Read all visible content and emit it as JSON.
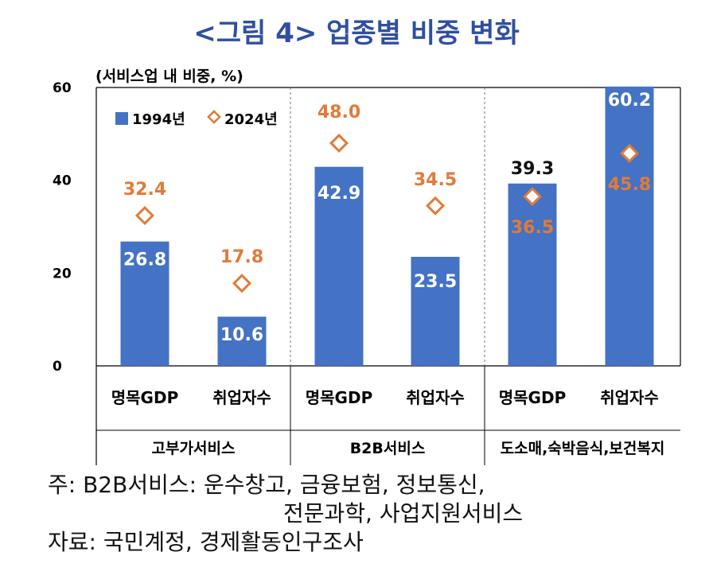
{
  "title": "<그림 4> 업종별 비중 변화",
  "chart_data": {
    "type": "bar",
    "ylabel": "(서비스업 내 비중, %)",
    "ylim": [
      0,
      60
    ],
    "yticks": [
      "0",
      "20",
      "40",
      "60"
    ],
    "legend": {
      "placement": "top-left",
      "bar_label": "1994년",
      "marker_label": "2024년"
    },
    "categories": [
      "명목GDP",
      "취업자수",
      "명목GDP",
      "취업자수",
      "명목GDP",
      "취업자수"
    ],
    "groups": [
      "고부가서비스",
      "B2B서비스",
      "도소매,숙박음식,보건복지"
    ],
    "series": [
      {
        "name": "1994년",
        "kind": "bar",
        "values": [
          26.8,
          10.6,
          42.9,
          23.5,
          39.3,
          60.2
        ],
        "labels": [
          "26.8",
          "10.6",
          "42.9",
          "23.5",
          "39.3",
          "60.2"
        ]
      },
      {
        "name": "2024년",
        "kind": "diamond",
        "values": [
          32.4,
          17.8,
          48.0,
          34.5,
          36.5,
          45.8
        ],
        "labels": [
          "32.4",
          "17.8",
          "48.0",
          "34.5",
          "36.5",
          "45.8"
        ]
      }
    ],
    "colors": {
      "bar": "#4472c4",
      "marker": "#e07b39"
    }
  },
  "notes": {
    "line1": "주:  B2B서비스:  운수창고,  금융보험,  정보통신,",
    "line2": "전문과학,  사업지원서비스",
    "line3": "자료:  국민계정,  경제활동인구조사"
  }
}
